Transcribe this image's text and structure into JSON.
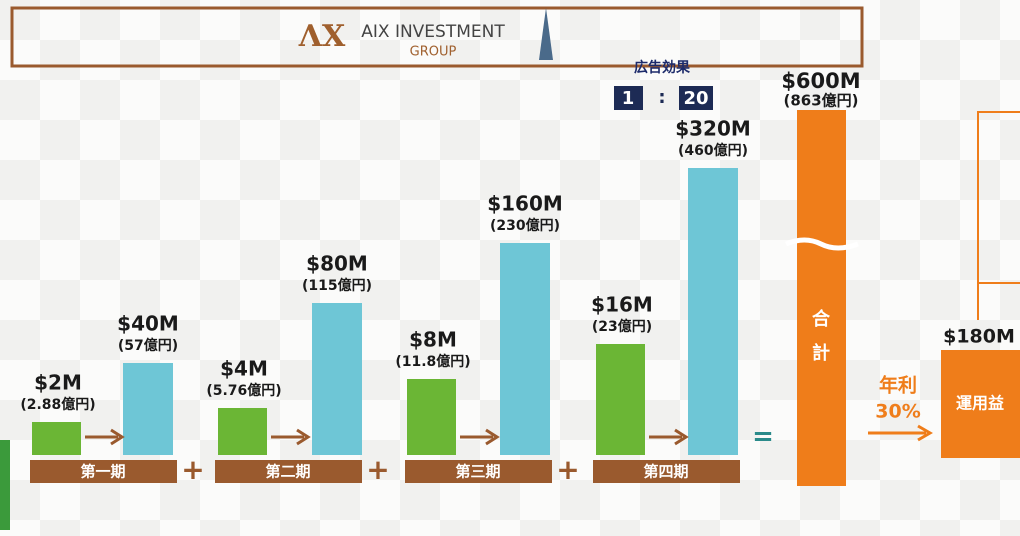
{
  "header": {
    "logo": "AIX INVESTMENT",
    "logo_sub": "GROUP"
  },
  "ad_effect": {
    "label": "広告効果",
    "ratio_left": "1",
    "colon": ":",
    "ratio_right": "20"
  },
  "periods": [
    {
      "name": "第一期",
      "invest": "$2M",
      "invest_yen": "(2.88億円)",
      "return": "$40M",
      "return_yen": "(57億円)"
    },
    {
      "name": "第二期",
      "invest": "$4M",
      "invest_yen": "(5.76億円)",
      "return": "$80M",
      "return_yen": "(115億円)"
    },
    {
      "name": "第三期",
      "invest": "$8M",
      "invest_yen": "(11.8億円)",
      "return": "$160M",
      "return_yen": "(230億円)"
    },
    {
      "name": "第四期",
      "invest": "$16M",
      "invest_yen": "(23億円)",
      "return": "$320M",
      "return_yen": "(460億円)"
    }
  ],
  "operators": {
    "plus": "+",
    "equals": "="
  },
  "total": {
    "value": "$600M",
    "yen": "(863億円)",
    "label_1": "合",
    "label_2": "計"
  },
  "annual": {
    "label": "年利",
    "rate": "30%"
  },
  "profit": {
    "value": "$180M",
    "label": "運用益"
  }
}
